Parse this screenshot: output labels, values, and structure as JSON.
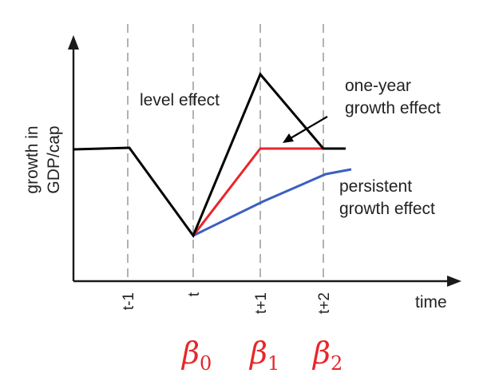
{
  "axes": {
    "y_label_line1": "growth in",
    "y_label_line2": "GDP/cap",
    "x_label": "time"
  },
  "ticks": [
    "t-1",
    "t",
    "t+1",
    "t+2"
  ],
  "annotations": {
    "level_effect": "level effect",
    "one_year_line1": "one-year",
    "one_year_line2": "growth effect",
    "persistent_line1": "persistent",
    "persistent_line2": "growth effect"
  },
  "betas": [
    {
      "symbol": "β",
      "sub": "0"
    },
    {
      "symbol": "β",
      "sub": "1"
    },
    {
      "symbol": "β",
      "sub": "2"
    }
  ],
  "colors": {
    "level_effect": "#000000",
    "one_year_growth_effect": "#e8262b",
    "persistent_growth_effect": "#3b5fc0",
    "beta_labels": "#e8262b",
    "axis": "#1a1a1a",
    "dashed": "#a0a0a0"
  }
}
